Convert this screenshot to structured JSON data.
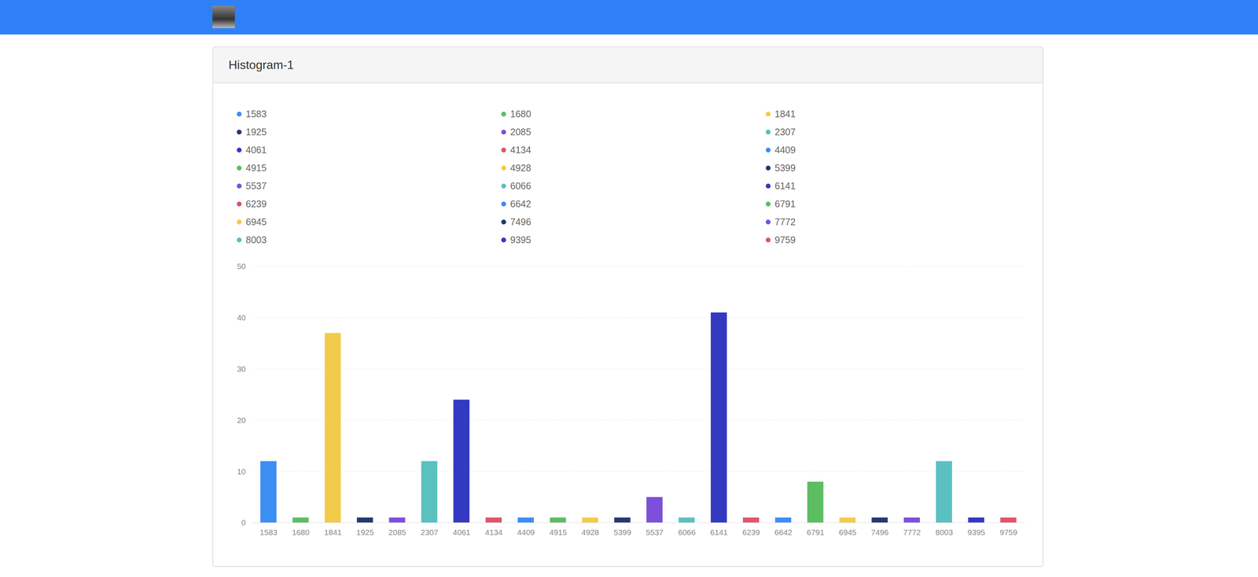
{
  "chart_data": {
    "type": "bar",
    "title": "Histogram-1",
    "categories": [
      "1583",
      "1680",
      "1841",
      "1925",
      "2085",
      "2307",
      "4061",
      "4134",
      "4409",
      "4915",
      "4928",
      "5399",
      "5537",
      "6066",
      "6141",
      "6239",
      "6642",
      "6791",
      "6945",
      "7496",
      "7772",
      "8003",
      "9395",
      "9759"
    ],
    "values": [
      12,
      1,
      37,
      1,
      1,
      12,
      24,
      1,
      1,
      1,
      1,
      1,
      5,
      1,
      41,
      1,
      1,
      8,
      1,
      1,
      1,
      12,
      1,
      1
    ],
    "colors": [
      "#3b8ff3",
      "#5cbd62",
      "#f3cb4b",
      "#243870",
      "#7d4fdb",
      "#5bc0c0",
      "#3339c0",
      "#e05468",
      "#3b8ff3",
      "#5cbd62",
      "#f3cb4b",
      "#243870",
      "#7d4fdb",
      "#5bc0c0",
      "#3339c0",
      "#e05468",
      "#3b8ff3",
      "#5cbd62",
      "#f3cb4b",
      "#243870",
      "#7d4fdb",
      "#5bc0c0",
      "#3339c0",
      "#e05468"
    ],
    "ylim": [
      0,
      50
    ],
    "yticks": [
      0,
      10,
      20,
      30,
      40,
      50
    ],
    "grid": true,
    "legend": "top"
  }
}
